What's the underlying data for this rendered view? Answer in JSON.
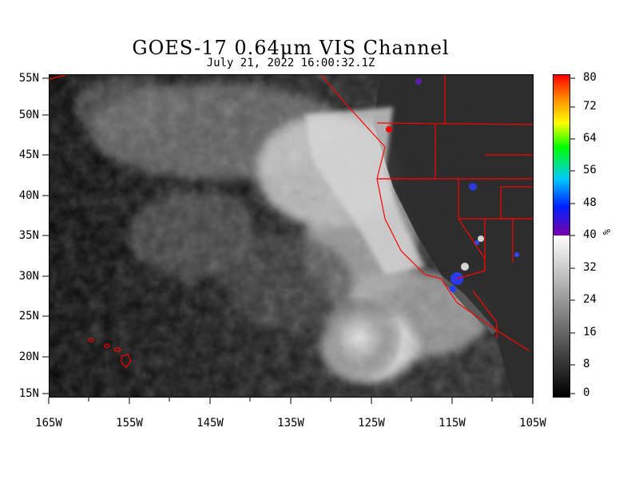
{
  "header": {
    "title": "GOES-17  0.64μm VIS Channel",
    "subtitle": "July 21,  2022 16:00:32.1Z"
  },
  "map": {
    "lat_labels": [
      "55N",
      "50N",
      "45N",
      "40N",
      "35N",
      "30N",
      "25N",
      "20N",
      "15N"
    ],
    "lon_labels": [
      "165W",
      "155W",
      "145W",
      "135W",
      "125W",
      "115W",
      "105W"
    ],
    "lat_range": [
      15,
      55
    ],
    "lon_range": [
      -165,
      -105
    ],
    "boundary_color": "#ff0000"
  },
  "colorbar": {
    "labels": [
      "80",
      "72",
      "64",
      "56",
      "48",
      "40",
      "32",
      "24",
      "16",
      "8",
      "0"
    ],
    "unit": "%",
    "range": [
      0,
      80
    ]
  }
}
